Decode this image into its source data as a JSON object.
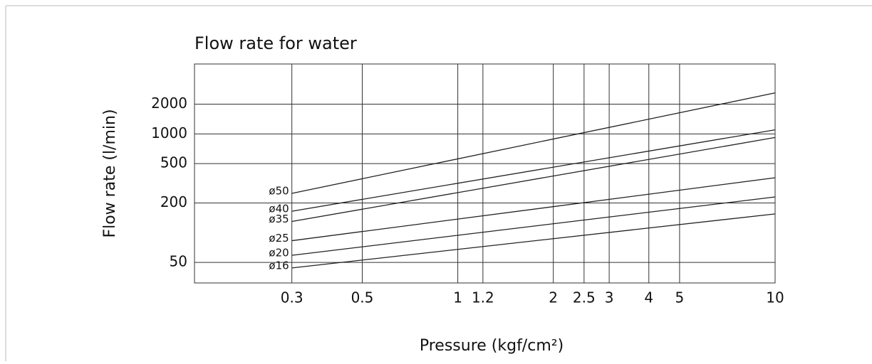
{
  "chart_data": {
    "type": "line",
    "title": "Flow rate for water",
    "x_label": "Pressure (kgf/cm²)",
    "y_label": "Flow rate (l/min)",
    "x": [
      0.3,
      10
    ],
    "series": [
      {
        "name": "ø50",
        "color": "#222222",
        "values": [
          250,
          2600
        ]
      },
      {
        "name": "ø40",
        "color": "#222222",
        "values": [
          165,
          1100
        ]
      },
      {
        "name": "ø35",
        "color": "#222222",
        "values": [
          130,
          920
        ]
      },
      {
        "name": "ø25",
        "color": "#222222",
        "values": [
          83,
          360
        ]
      },
      {
        "name": "ø20",
        "color": "#222222",
        "values": [
          59,
          230
        ]
      },
      {
        "name": "ø16",
        "color": "#222222",
        "values": [
          44,
          155
        ]
      }
    ],
    "xscale": "log",
    "yscale": "log",
    "xlim": [
      0.148,
      10
    ],
    "ylim": [
      31,
      5100
    ],
    "xticks": [
      0.3,
      0.5,
      1,
      1.2,
      2,
      2.5,
      3,
      4,
      5,
      10
    ],
    "yticks": [
      50,
      200,
      500,
      1000,
      2000
    ],
    "grid": true
  }
}
